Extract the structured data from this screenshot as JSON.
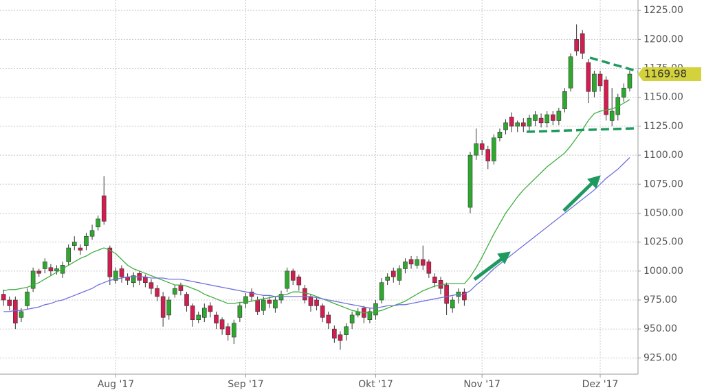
{
  "chart_data": {
    "type": "candlestick",
    "categories": [
      null,
      null,
      null,
      null,
      null,
      null,
      null,
      null,
      null,
      null,
      null,
      null,
      null,
      null,
      null,
      null,
      null,
      null,
      null,
      "Aug '17",
      null,
      null,
      null,
      null,
      null,
      null,
      null,
      null,
      null,
      null,
      null,
      null,
      null,
      null,
      null,
      null,
      null,
      null,
      null,
      null,
      null,
      "Sep '17",
      null,
      null,
      null,
      null,
      null,
      null,
      null,
      null,
      null,
      null,
      null,
      null,
      null,
      null,
      null,
      null,
      null,
      null,
      null,
      null,
      null,
      "Okt '17",
      null,
      null,
      null,
      null,
      null,
      null,
      null,
      null,
      null,
      null,
      null,
      null,
      null,
      null,
      null,
      null,
      null,
      "Nov '17",
      null,
      null,
      null,
      null,
      null,
      null,
      null,
      null,
      null,
      null,
      null,
      null,
      null,
      null,
      null,
      null,
      null,
      null,
      null,
      "Dez '17",
      null,
      null,
      null,
      null,
      null
    ],
    "open": [
      980,
      975,
      975,
      960,
      970,
      985,
      1000,
      1002,
      1003,
      1000,
      998,
      1008,
      1022,
      1020,
      1022,
      1030,
      1038,
      1065,
      1020,
      992,
      1002,
      995,
      990,
      998,
      995,
      990,
      985,
      978,
      962,
      980,
      988,
      980,
      970,
      958,
      960,
      970,
      962,
      958,
      952,
      943,
      960,
      972,
      982,
      975,
      966,
      975,
      968,
      975,
      985,
      1000,
      995,
      985,
      978,
      975,
      970,
      962,
      950,
      945,
      945,
      955,
      962,
      968,
      958,
      962,
      975,
      992,
      1000,
      992,
      1002,
      1010,
      1005,
      1010,
      1008,
      995,
      992,
      988,
      968,
      978,
      982,
      1055,
      1100,
      1110,
      1105,
      1095,
      1115,
      1122,
      1133,
      1125,
      1128,
      1125,
      1130,
      1132,
      1128,
      1135,
      1130,
      1140,
      1158,
      1200,
      1205,
      1180,
      1155,
      1170,
      1165,
      1130,
      1135,
      1150,
      1158
    ],
    "high": [
      984,
      978,
      978,
      968,
      985,
      1003,
      1002,
      1011,
      1006,
      1005,
      1008,
      1023,
      1030,
      1023,
      1033,
      1040,
      1048,
      1082,
      1022,
      1003,
      1005,
      998,
      999,
      1000,
      997,
      993,
      988,
      982,
      978,
      988,
      990,
      982,
      972,
      965,
      972,
      973,
      965,
      960,
      955,
      958,
      973,
      981,
      985,
      978,
      978,
      978,
      978,
      983,
      1003,
      1002,
      997,
      988,
      980,
      978,
      972,
      965,
      953,
      948,
      955,
      965,
      968,
      970,
      968,
      975,
      994,
      998,
      1003,
      1005,
      1011,
      1013,
      1013,
      1022,
      1010,
      998,
      995,
      990,
      978,
      985,
      985,
      1103,
      1123,
      1113,
      1108,
      1118,
      1123,
      1131,
      1137,
      1130,
      1132,
      1135,
      1138,
      1136,
      1138,
      1138,
      1141,
      1158,
      1188,
      1213,
      1208,
      1183,
      1173,
      1173,
      1168,
      1158,
      1153,
      1162,
      1173
    ],
    "low": [
      970,
      966,
      950,
      956,
      967,
      982,
      995,
      998,
      996,
      997,
      994,
      1005,
      1018,
      1014,
      1018,
      1027,
      1035,
      1040,
      988,
      989,
      990,
      988,
      986,
      988,
      986,
      980,
      974,
      952,
      958,
      977,
      979,
      965,
      952,
      955,
      956,
      960,
      950,
      945,
      940,
      937,
      956,
      968,
      974,
      962,
      962,
      968,
      964,
      972,
      982,
      988,
      983,
      972,
      965,
      966,
      956,
      950,
      938,
      932,
      940,
      950,
      960,
      955,
      955,
      958,
      972,
      988,
      990,
      988,
      998,
      1002,
      1002,
      1001,
      994,
      986,
      980,
      962,
      964,
      972,
      970,
      1050,
      1096,
      1100,
      1088,
      1092,
      1112,
      1118,
      1120,
      1120,
      1120,
      1120,
      1125,
      1124,
      1124,
      1126,
      1126,
      1137,
      1155,
      1186,
      1183,
      1145,
      1150,
      1155,
      1130,
      1125,
      1130,
      1146,
      1155
    ],
    "close": [
      975,
      970,
      955,
      965,
      982,
      1000,
      998,
      1008,
      1000,
      1002,
      1005,
      1020,
      1025,
      1018,
      1030,
      1035,
      1045,
      1043,
      995,
      1000,
      995,
      992,
      996,
      992,
      990,
      985,
      978,
      960,
      975,
      985,
      983,
      970,
      958,
      962,
      968,
      965,
      955,
      950,
      945,
      955,
      970,
      978,
      978,
      965,
      975,
      972,
      975,
      980,
      1000,
      992,
      988,
      975,
      970,
      970,
      960,
      955,
      942,
      940,
      952,
      962,
      965,
      960,
      965,
      972,
      990,
      995,
      995,
      1002,
      1008,
      1006,
      1010,
      1005,
      998,
      990,
      985,
      972,
      975,
      982,
      975,
      1100,
      1110,
      1105,
      1095,
      1115,
      1120,
      1128,
      1125,
      1128,
      1125,
      1132,
      1135,
      1128,
      1135,
      1130,
      1138,
      1155,
      1185,
      1190,
      1188,
      1155,
      1170,
      1160,
      1135,
      1138,
      1150,
      1158,
      1169.98
    ],
    "up_color": "#2ea82e",
    "down_color": "#d11d4f",
    "lines": [
      {
        "color": "#3dae3d",
        "values": [
          983,
          984,
          984,
          985,
          986,
          988,
          990,
          993,
          996,
          999,
          1002,
          1005,
          1008,
          1011,
          1013,
          1016,
          1018,
          1020,
          1018,
          1015,
          1010,
          1005,
          1002,
          1000,
          998,
          996,
          994,
          992,
          990,
          988,
          988,
          987,
          985,
          983,
          980,
          978,
          976,
          974,
          972,
          972,
          973,
          973,
          974,
          975,
          976,
          977,
          978,
          979,
          980,
          982,
          982,
          981,
          980,
          978,
          976,
          974,
          972,
          970,
          968,
          966,
          965,
          964,
          964,
          965,
          966,
          968,
          970,
          972,
          974,
          977,
          980,
          983,
          985,
          987,
          988,
          989,
          989,
          989,
          989,
          995,
          1003,
          1012,
          1022,
          1032,
          1041,
          1050,
          1057,
          1064,
          1070,
          1075,
          1080,
          1085,
          1090,
          1094,
          1098,
          1102,
          1108,
          1115,
          1122,
          1130,
          1136,
          1138,
          1139,
          1140,
          1142,
          1145,
          1148
        ]
      },
      {
        "color": "#6f6fe0",
        "values": [
          965,
          965,
          966,
          966,
          967,
          968,
          969,
          971,
          972,
          974,
          975,
          977,
          979,
          981,
          983,
          985,
          988,
          990,
          992,
          993,
          994,
          995,
          995,
          995,
          995,
          994,
          994,
          994,
          993,
          993,
          993,
          992,
          991,
          990,
          989,
          988,
          987,
          986,
          985,
          984,
          983,
          982,
          981,
          980,
          979,
          979,
          978,
          978,
          978,
          978,
          978,
          978,
          978,
          977,
          976,
          975,
          974,
          973,
          972,
          971,
          970,
          969,
          968,
          968,
          969,
          970,
          970,
          971,
          971,
          972,
          973,
          974,
          975,
          976,
          977,
          978,
          979,
          980,
          980,
          983,
          988,
          992,
          997,
          1002,
          1006,
          1010,
          1014,
          1018,
          1022,
          1026,
          1030,
          1034,
          1038,
          1042,
          1046,
          1050,
          1054,
          1058,
          1062,
          1066,
          1070,
          1075,
          1080,
          1084,
          1088,
          1093,
          1098
        ]
      }
    ],
    "last_price": 1169.98,
    "last_price_color": "#d4d23c",
    "ylim": [
      911,
      1234
    ],
    "yticks": [
      {
        "value": 925,
        "label": "925.00"
      },
      {
        "value": 950,
        "label": "950.00"
      },
      {
        "value": 975,
        "label": "975.00"
      },
      {
        "value": 1000,
        "label": "1000.00"
      },
      {
        "value": 1025,
        "label": "1025.00"
      },
      {
        "value": 1050,
        "label": "1050.00"
      },
      {
        "value": 1075,
        "label": "1075.00"
      },
      {
        "value": 1100,
        "label": "1100.00"
      },
      {
        "value": 1125,
        "label": "1125.00"
      },
      {
        "value": 1150,
        "label": "1150.00"
      },
      {
        "value": 1175,
        "label": "1175.00"
      },
      {
        "value": 1200,
        "label": "1200.00"
      },
      {
        "value": 1225,
        "label": "1225.00"
      }
    ],
    "grid": true
  }
}
